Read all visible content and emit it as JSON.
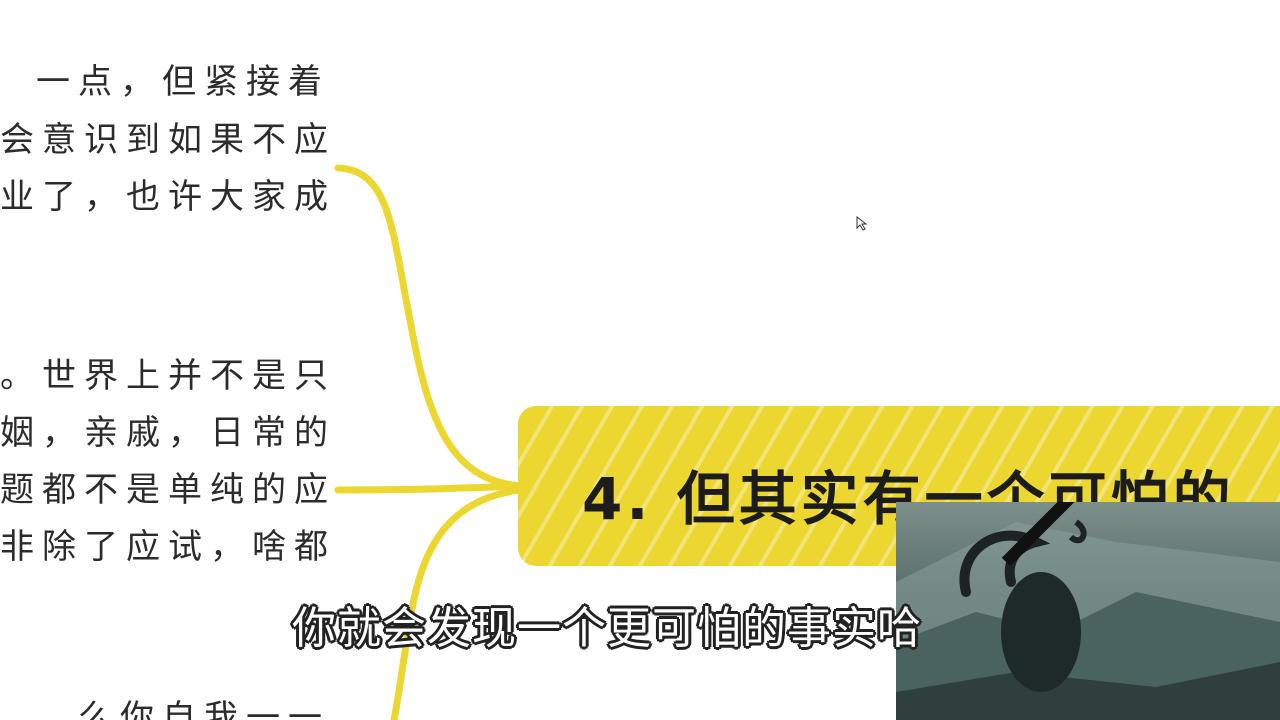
{
  "mindmap": {
    "left_lines_top": [
      "一点，但紧接着",
      "会意识到如果不应",
      "业了，也许大家成"
    ],
    "left_lines_middle": [
      "。世界上并不是只",
      "姻，亲戚，日常的",
      "题都不是单纯的应",
      "非除了应试，啥都"
    ],
    "left_lines_bottom": [
      "么你自我一一"
    ],
    "node_title": "4. 但其实有一个可怕的"
  },
  "video": {
    "subtitle": "你就会发现一个更可怕的事实哈"
  },
  "colors": {
    "accent": "#ecd630",
    "branch": "#ecd630",
    "text": "#2b2b2b"
  },
  "icons": {
    "cursor": "pointer-icon"
  }
}
